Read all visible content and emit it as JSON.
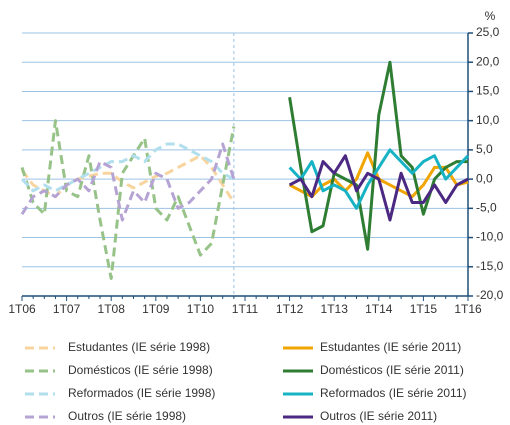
{
  "chart_data": {
    "type": "line",
    "unit": "%",
    "categories": [
      "1T06",
      null,
      null,
      null,
      "1T07",
      null,
      null,
      null,
      "1T08",
      null,
      null,
      null,
      "1T09",
      null,
      null,
      null,
      "1T10",
      null,
      null,
      null,
      "1T11",
      null,
      null,
      null,
      "1T12",
      null,
      null,
      null,
      "1T13",
      null,
      null,
      null,
      "1T14",
      null,
      null,
      null,
      "1T15",
      null,
      null,
      null,
      "1T16"
    ],
    "ylim": [
      -20,
      25
    ],
    "yticks": [
      {
        "value": -20,
        "label": "-20,0"
      },
      {
        "value": -15,
        "label": "-15,0"
      },
      {
        "value": -10,
        "label": "-10,0"
      },
      {
        "value": -5,
        "label": "-5,0"
      },
      {
        "value": 0,
        "label": "0,0"
      },
      {
        "value": 5,
        "label": "5,0"
      },
      {
        "value": 10,
        "label": "10,0"
      },
      {
        "value": 15,
        "label": "15,0"
      },
      {
        "value": 20,
        "label": "20,0"
      },
      {
        "value": 25,
        "label": "25,0"
      }
    ],
    "grid": true,
    "series": [
      {
        "name": "Estudantes (IE série 1998)",
        "color": "#f8d49e",
        "style": "dashed",
        "values": [
          1.5,
          -1,
          -2,
          -3,
          -1,
          0,
          0.5,
          1,
          1,
          -0.5,
          -1.5,
          -0.5,
          0.5,
          1,
          2,
          3,
          4,
          2,
          -1,
          -4,
          null,
          null,
          null,
          null,
          null,
          null,
          null,
          null,
          null,
          null,
          null,
          null,
          null,
          null,
          null,
          null,
          null,
          null,
          null,
          null,
          null
        ]
      },
      {
        "name": "Domésticos (IE série 1998)",
        "color": "#97c389",
        "style": "dashed",
        "values": [
          2,
          -4,
          -6,
          10,
          -2,
          -3,
          4,
          -7,
          -17,
          1,
          4,
          7,
          -5,
          -7,
          -3,
          -8,
          -13,
          -11,
          -1,
          9,
          null,
          null,
          null,
          null,
          null,
          null,
          null,
          null,
          null,
          null,
          null,
          null,
          null,
          null,
          null,
          null,
          null,
          null,
          null,
          null,
          null
        ]
      },
      {
        "name": "Reformados (IE série 1998)",
        "color": "#b1dfee",
        "style": "dashed",
        "values": [
          0,
          -2,
          -1,
          -2,
          -1,
          0,
          1,
          2,
          3,
          3,
          4,
          3,
          5,
          6,
          6,
          5,
          4,
          3,
          1,
          0,
          null,
          null,
          null,
          null,
          null,
          null,
          null,
          null,
          null,
          null,
          null,
          null,
          null,
          null,
          null,
          null,
          null,
          null,
          null,
          null,
          null
        ]
      },
      {
        "name": "Outros (IE série 1998)",
        "color": "#b5a3d4",
        "style": "dashed",
        "values": [
          -6,
          -3,
          -2,
          -3,
          -1,
          0,
          -2,
          3,
          2,
          -7,
          -2,
          -4,
          1,
          0,
          -5,
          -4,
          -2,
          0,
          6,
          0,
          null,
          null,
          null,
          null,
          null,
          null,
          null,
          null,
          null,
          null,
          null,
          null,
          null,
          null,
          null,
          null,
          null,
          null,
          null,
          null,
          null
        ]
      },
      {
        "name": "Estudantes (IE série 2011)",
        "color": "#f0a500",
        "style": "solid",
        "values": [
          null,
          null,
          null,
          null,
          null,
          null,
          null,
          null,
          null,
          null,
          null,
          null,
          null,
          null,
          null,
          null,
          null,
          null,
          null,
          null,
          null,
          null,
          null,
          null,
          -1,
          -2,
          -3,
          -1,
          0,
          -2,
          0,
          4.5,
          0,
          -1,
          -2,
          -3,
          -1,
          2,
          2,
          -1,
          -0.5
        ]
      },
      {
        "name": "Domésticos (IE série 2011)",
        "color": "#2e7d32",
        "style": "solid",
        "values": [
          null,
          null,
          null,
          null,
          null,
          null,
          null,
          null,
          null,
          null,
          null,
          null,
          null,
          null,
          null,
          null,
          null,
          null,
          null,
          null,
          null,
          null,
          null,
          null,
          14,
          2,
          -9,
          -8,
          1,
          0,
          -1,
          -12,
          11,
          20,
          4,
          2,
          -6,
          0,
          2,
          3,
          3
        ]
      },
      {
        "name": "Reformados (IE série 2011)",
        "color": "#17b3c5",
        "style": "solid",
        "values": [
          null,
          null,
          null,
          null,
          null,
          null,
          null,
          null,
          null,
          null,
          null,
          null,
          null,
          null,
          null,
          null,
          null,
          null,
          null,
          null,
          null,
          null,
          null,
          null,
          2,
          0,
          3,
          -2,
          -1,
          -2,
          -5,
          -1,
          2,
          5,
          3,
          1,
          3,
          4,
          0,
          2,
          4
        ]
      },
      {
        "name": "Outros (IE série 2011)",
        "color": "#4b2882",
        "style": "solid",
        "values": [
          null,
          null,
          null,
          null,
          null,
          null,
          null,
          null,
          null,
          null,
          null,
          null,
          null,
          null,
          null,
          null,
          null,
          null,
          null,
          null,
          null,
          null,
          null,
          null,
          -1,
          0,
          -3,
          3,
          1,
          4,
          -2,
          1,
          0,
          -7,
          1,
          -4,
          -4,
          -1,
          -4,
          -1,
          0
        ]
      }
    ]
  }
}
